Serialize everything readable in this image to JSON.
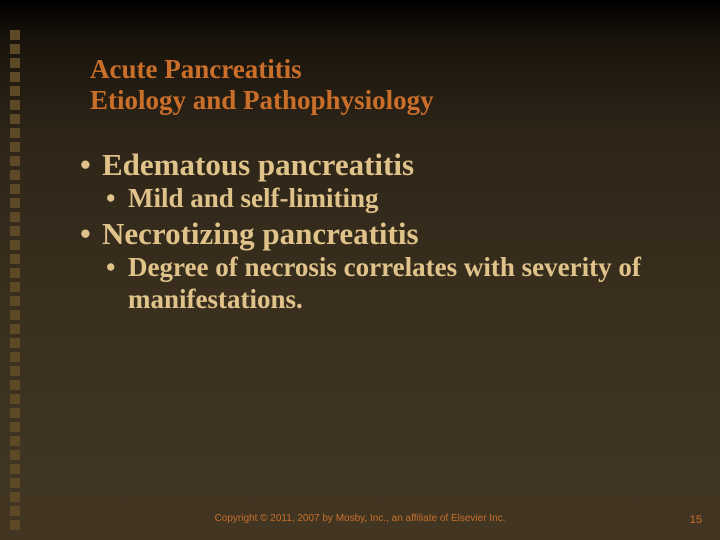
{
  "title": {
    "line1": "Acute Pancreatitis",
    "line2": "Etiology and Pathophysiology",
    "color": "#c96f2a",
    "fontsize": 27
  },
  "bullets": [
    {
      "level": 1,
      "text": "Edematous pancreatitis"
    },
    {
      "level": 2,
      "text": "Mild and self-limiting"
    },
    {
      "level": 1,
      "text": "Necrotizing pancreatitis"
    },
    {
      "level": 2,
      "text": "Degree of necrosis correlates with severity of manifestations."
    }
  ],
  "bullet_style": {
    "color": "#e0c38a",
    "lvl1_fontsize": 31,
    "lvl2_fontsize": 27
  },
  "left_stripe": {
    "square_color": "#5e4927",
    "count": 36
  },
  "footer": {
    "text": "Copyright © 2011, 2007 by Mosby, Inc., an affiliate of Elsevier Inc.",
    "color": "#c96f2a",
    "fontsize": 10
  },
  "page_number": {
    "value": "15",
    "color": "#c96f2a",
    "fontsize": 11
  },
  "background": {
    "gradient_top": "#000000",
    "gradient_bottom": "#423623"
  }
}
